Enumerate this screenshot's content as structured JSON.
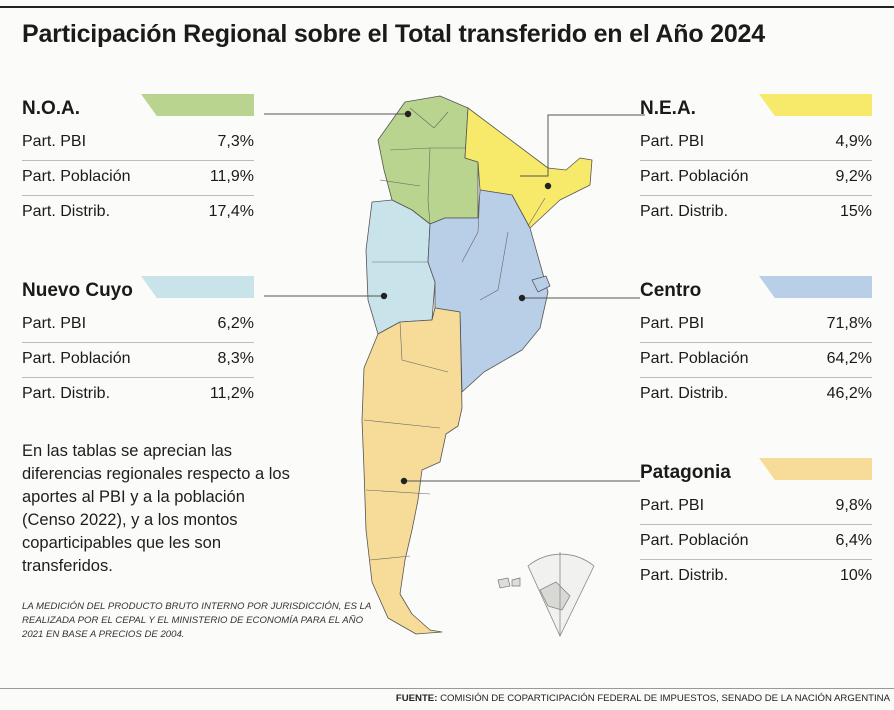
{
  "title": "Participación Regional sobre el Total transferido en el Año 2024",
  "colors": {
    "noa": "#b9d48e",
    "nea": "#f7ea6a",
    "cuyo": "#c8e3ea",
    "centro": "#b9cfe8",
    "patagonia": "#f7dc99"
  },
  "regions": {
    "noa": {
      "name": "N.O.A.",
      "rows": [
        {
          "label": "Part. PBI",
          "value": "7,3%"
        },
        {
          "label": "Part. Población",
          "value": "11,9%"
        },
        {
          "label": "Part. Distrib.",
          "value": "17,4%"
        }
      ]
    },
    "nea": {
      "name": "N.E.A.",
      "rows": [
        {
          "label": "Part. PBI",
          "value": "4,9%"
        },
        {
          "label": "Part. Población",
          "value": "9,2%"
        },
        {
          "label": "Part. Distrib.",
          "value": "15%"
        }
      ]
    },
    "cuyo": {
      "name": "Nuevo Cuyo",
      "rows": [
        {
          "label": "Part. PBI",
          "value": "6,2%"
        },
        {
          "label": "Part. Población",
          "value": "8,3%"
        },
        {
          "label": "Part. Distrib.",
          "value": "11,2%"
        }
      ]
    },
    "centro": {
      "name": "Centro",
      "rows": [
        {
          "label": "Part. PBI",
          "value": "71,8%"
        },
        {
          "label": "Part. Población",
          "value": "64,2%"
        },
        {
          "label": "Part. Distrib.",
          "value": "46,2%"
        }
      ]
    },
    "patagonia": {
      "name": "Patagonia",
      "rows": [
        {
          "label": "Part. PBI",
          "value": "9,8%"
        },
        {
          "label": "Part. Población",
          "value": "6,4%"
        },
        {
          "label": "Part. Distrib.",
          "value": "10%"
        }
      ]
    }
  },
  "note": "En las tablas se aprecian las diferencias regionales respecto a los aportes al PBI y a la población (Censo 2022), y a los montos coparticipables que les son transferidos.",
  "methodology": "La medición del producto bruto interno por jurisdicción, es la realizada por el CEPAL y el Ministerio de Economía para el año 2021 en base a precios de 2004.",
  "source_label": "FUENTE:",
  "source_text": "Comisión de Coparticipación Federal de Impuestos, Senado de la Nación Argentina"
}
